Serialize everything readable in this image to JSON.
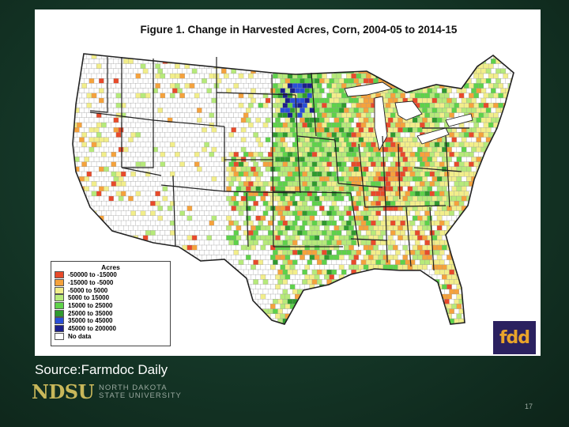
{
  "figure": {
    "title": "Figure 1. Change in Harvested Acres, Corn, 2004-05 to 2014-15",
    "legend": {
      "title": "Acres",
      "items": [
        {
          "label": "-50000 to -15000",
          "color": "#e84a2a"
        },
        {
          "label": "-15000 to -5000",
          "color": "#f5a23c"
        },
        {
          "label": "-5000 to 5000",
          "color": "#f2ee8a"
        },
        {
          "label": "5000 to 15000",
          "color": "#b6ea7a"
        },
        {
          "label": "15000 to 25000",
          "color": "#5ed24a"
        },
        {
          "label": "25000 to 35000",
          "color": "#2f9a2e"
        },
        {
          "label": "35000 to 45000",
          "color": "#2a4fd8"
        },
        {
          "label": "45000 to 200000",
          "color": "#1b1f8c"
        },
        {
          "label": "No data",
          "color": "#ffffff"
        }
      ]
    },
    "logo_text": "fdd",
    "colors": {
      "state_border": "#333333",
      "county_border": "#9a9a9a",
      "background": "#ffffff"
    }
  },
  "source_text": "Source:Farmdoc Daily",
  "university": {
    "abbr": "NDSU",
    "name_line1": "NORTH DAKOTA",
    "name_line2": "STATE UNIVERSITY"
  },
  "page_number": "17"
}
